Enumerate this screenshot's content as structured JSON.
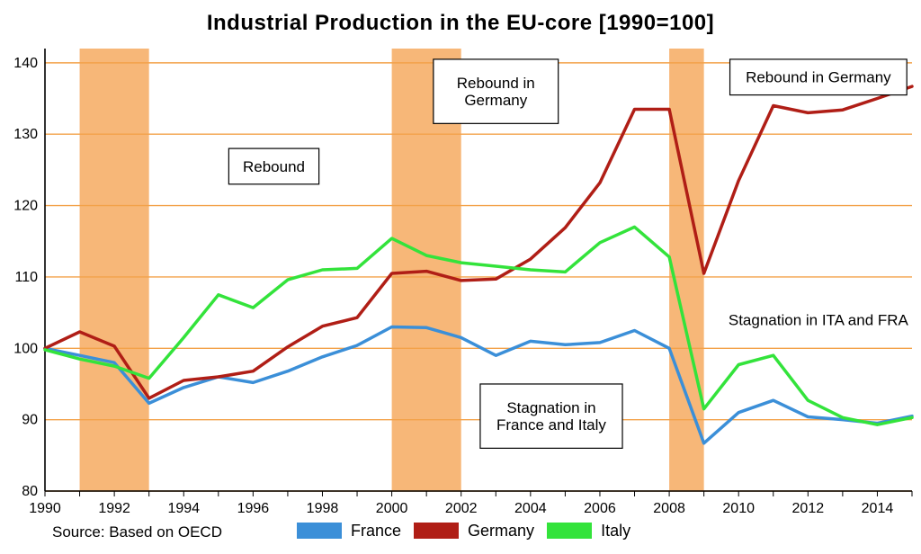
{
  "chart": {
    "type": "line",
    "title": "Industrial Production in the EU-core [1990=100]",
    "title_fontsize": 24,
    "source_text": "Source: Based on OECD",
    "background_color": "#ffffff",
    "grid_color": "#f3a24a",
    "axis_line_color": "#000000",
    "x": {
      "min": 1990,
      "max": 2015,
      "tick_step": 2,
      "label_fontsize": 16
    },
    "y": {
      "min": 80,
      "max": 142,
      "tick_step": 10,
      "labels": [
        80,
        90,
        100,
        110,
        120,
        130,
        140
      ],
      "label_fontsize": 16
    },
    "shaded_ranges": [
      {
        "from": 1991,
        "to": 1993,
        "color": "#f7b778"
      },
      {
        "from": 2000,
        "to": 2002,
        "color": "#f7b778"
      },
      {
        "from": 2008,
        "to": 2009,
        "color": "#f7b778"
      }
    ],
    "years": [
      1990,
      1991,
      1992,
      1993,
      1994,
      1995,
      1996,
      1997,
      1998,
      1999,
      2000,
      2001,
      2002,
      2003,
      2004,
      2005,
      2006,
      2007,
      2008,
      2009,
      2010,
      2011,
      2012,
      2013,
      2014,
      2015
    ],
    "series": [
      {
        "name": "France",
        "color": "#3b8fd8",
        "line_width": 3.5,
        "values": [
          100,
          99,
          98,
          92.3,
          94.5,
          96,
          95.2,
          96.8,
          98.8,
          100.4,
          103,
          102.9,
          101.5,
          99,
          101,
          100.5,
          100.8,
          102.5,
          100,
          86.7,
          91,
          92.7,
          90.4,
          90,
          89.5,
          90.5
        ]
      },
      {
        "name": "Germany",
        "color": "#b01e16",
        "line_width": 3.5,
        "values": [
          100,
          102.3,
          100.3,
          93,
          95.5,
          96,
          96.8,
          100.2,
          103.1,
          104.3,
          110.5,
          110.8,
          109.5,
          109.7,
          112.5,
          116.9,
          123.2,
          133.5,
          133.5,
          110.5,
          123.5,
          134,
          133,
          133.4,
          135,
          136.7
        ]
      },
      {
        "name": "Italy",
        "color": "#33e33b",
        "line_width": 3.5,
        "values": [
          99.8,
          98.5,
          97.5,
          95.8,
          101.5,
          107.5,
          105.7,
          109.6,
          111,
          111.2,
          115.4,
          113,
          112,
          111.5,
          111,
          110.7,
          114.8,
          117,
          112.8,
          91.5,
          97.7,
          99,
          92.7,
          90.3,
          89.3,
          90.3
        ]
      }
    ],
    "annotations": [
      {
        "type": "box",
        "text_lines": [
          "Rebound in",
          "Germany"
        ],
        "x_center": 2003,
        "y_center": 136,
        "w_years": 3.6,
        "h_val": 9
      },
      {
        "type": "box",
        "text_lines": [
          "Rebound in Germany"
        ],
        "x_center": 2012.3,
        "y_center": 138,
        "w_years": 5.1,
        "h_val": 5
      },
      {
        "type": "box",
        "text_lines": [
          "Rebound"
        ],
        "x_center": 1996.6,
        "y_center": 125.5,
        "w_years": 2.6,
        "h_val": 5
      },
      {
        "type": "box",
        "text_lines": [
          "Stagnation in",
          "France and Italy"
        ],
        "x_center": 2004.6,
        "y_center": 90.5,
        "w_years": 4.1,
        "h_val": 9
      },
      {
        "type": "text",
        "text_lines": [
          "Stagnation in ITA and FRA"
        ],
        "x_center": 2012.3,
        "y_center": 104,
        "fontsize": 17
      }
    ],
    "legend": [
      {
        "label": "France",
        "color": "#3b8fd8"
      },
      {
        "label": "Germany",
        "color": "#b01e16"
      },
      {
        "label": "Italy",
        "color": "#33e33b"
      }
    ]
  }
}
